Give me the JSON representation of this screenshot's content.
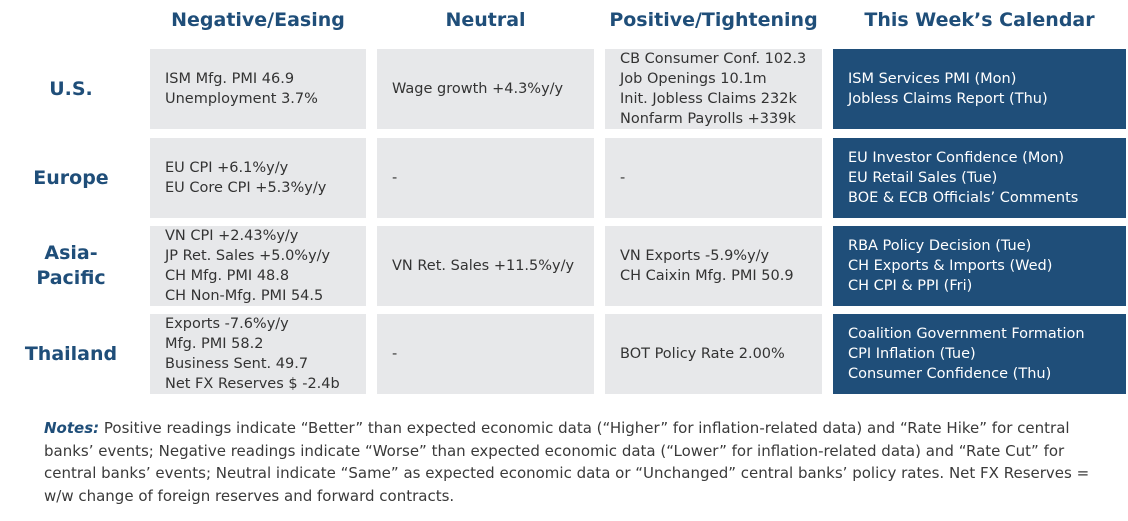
{
  "headers": [
    "Negative/Easing",
    "Neutral",
    "Positive/Tightening",
    "This Week’s Calendar"
  ],
  "rows": [
    {
      "label_lines": [
        "U.S."
      ],
      "negative": [
        "ISM Mfg. PMI 46.9",
        "Unemployment 3.7%"
      ],
      "neutral": [
        "Wage growth +4.3%y/y"
      ],
      "positive": [
        "CB Consumer Conf. 102.3",
        "Job Openings 10.1m",
        "Init. Jobless Claims 232k",
        "Nonfarm Payrolls +339k"
      ],
      "calendar": [
        "ISM Services PMI (Mon)",
        "Jobless Claims Report (Thu)"
      ]
    },
    {
      "label_lines": [
        "Europe"
      ],
      "negative": [
        "EU CPI +6.1%y/y",
        "EU Core CPI +5.3%y/y"
      ],
      "neutral": [
        "-"
      ],
      "positive": [
        "-"
      ],
      "calendar": [
        "EU Investor Confidence (Mon)",
        "EU Retail Sales (Tue)",
        "BOE & ECB Officials’ Comments"
      ]
    },
    {
      "label_lines": [
        "Asia-",
        "Pacific"
      ],
      "negative": [
        "VN CPI +2.43%y/y",
        "JP Ret. Sales +5.0%y/y",
        "CH Mfg. PMI 48.8",
        "CH Non-Mfg. PMI 54.5"
      ],
      "neutral": [
        "VN Ret. Sales +11.5%y/y"
      ],
      "positive": [
        "VN Exports -5.9%y/y",
        "CH Caixin Mfg. PMI 50.9"
      ],
      "calendar": [
        "RBA Policy Decision (Tue)",
        "CH Exports & Imports (Wed)",
        "CH CPI & PPI (Fri)"
      ]
    },
    {
      "label_lines": [
        "Thailand"
      ],
      "negative": [
        "Exports -7.6%y/y",
        "Mfg. PMI 58.2",
        "Business Sent. 49.7",
        "Net FX Reserves $ -2.4b"
      ],
      "neutral": [
        "-"
      ],
      "positive": [
        "BOT Policy Rate 2.00%"
      ],
      "calendar": [
        "Coalition Government Formation",
        "CPI Inflation (Tue)",
        "Consumer Confidence (Thu)"
      ]
    }
  ],
  "notes": {
    "label": "Notes:",
    "text": " Positive readings indicate “Better” than expected economic data (“Higher” for inflation-related data) and “Rate Hike” for central banks’ events; Negative readings indicate “Worse” than expected economic data (“Lower” for inflation-related data) and “Rate Cut” for central banks’ events; Neutral indicate “Same” as expected economic data or “Unchanged” central banks’ policy rates. Net FX Reserves = w/w change of foreign reserves and forward contracts."
  },
  "colors": {
    "header_text": "#1f4e79",
    "cell_bg": "#e7e8ea",
    "calendar_bg": "#1f4e79",
    "calendar_text": "#ffffff"
  }
}
